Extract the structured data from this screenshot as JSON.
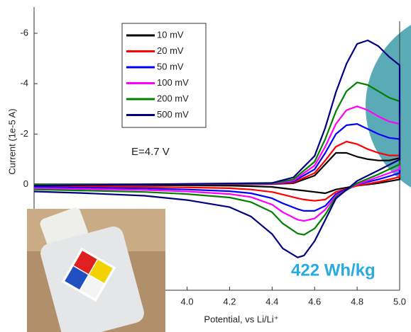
{
  "chart_data": {
    "type": "line",
    "y_label": "Current (1e-5 A)",
    "x_label": "Potential, vs Li/Li⁺",
    "annotations": [
      "E=4.7 V",
      "422 Wh/kg"
    ],
    "x": [
      3.28,
      3.8,
      4.4,
      4.5,
      4.6,
      4.65,
      4.7,
      4.75,
      4.8,
      4.85,
      4.9,
      4.95,
      5.0,
      5.0,
      4.9,
      4.8,
      4.7,
      4.65,
      4.6,
      4.55,
      4.52,
      4.45,
      4.4,
      4.3,
      4.2,
      4.0,
      3.8,
      3.5,
      3.28
    ],
    "series": [
      {
        "name": "10 mV",
        "color": "#000000",
        "values": [
          0,
          0,
          -0.01,
          -0.05,
          -0.35,
          -0.8,
          -1.25,
          -1.25,
          -1.1,
          -1.0,
          -0.95,
          -0.95,
          -1.05,
          -0.2,
          -0.05,
          0.05,
          0.2,
          0.35,
          0.3,
          0.25,
          0.22,
          0.15,
          0.1,
          0.07,
          0.05,
          0.04,
          0.03,
          0.02,
          0.02
        ]
      },
      {
        "name": "20 mV",
        "color": "#ff0000",
        "values": [
          0,
          0,
          -0.01,
          -0.08,
          -0.45,
          -0.95,
          -1.5,
          -1.7,
          -1.6,
          -1.4,
          -1.25,
          -1.15,
          -1.15,
          -0.3,
          -0.1,
          0.05,
          0.3,
          0.6,
          0.65,
          0.6,
          0.55,
          0.4,
          0.3,
          0.2,
          0.15,
          0.12,
          0.1,
          0.08,
          0.06
        ]
      },
      {
        "name": "50 mV",
        "color": "#0000ff",
        "values": [
          0,
          0,
          -0.02,
          -0.12,
          -0.6,
          -1.25,
          -2.0,
          -2.35,
          -2.4,
          -2.2,
          -2.0,
          -1.85,
          -1.8,
          -0.45,
          -0.2,
          0,
          0.38,
          0.85,
          1.05,
          1.05,
          0.98,
          0.75,
          0.55,
          0.35,
          0.27,
          0.2,
          0.16,
          0.13,
          0.1
        ]
      },
      {
        "name": "100 mV",
        "color": "#ff00ff",
        "values": [
          0,
          0,
          -0.03,
          -0.15,
          -0.75,
          -1.5,
          -2.4,
          -2.95,
          -3.1,
          -2.95,
          -2.7,
          -2.5,
          -2.4,
          -0.6,
          -0.3,
          0,
          0.45,
          1.0,
          1.35,
          1.45,
          1.4,
          1.1,
          0.8,
          0.5,
          0.38,
          0.28,
          0.22,
          0.18,
          0.15
        ]
      },
      {
        "name": "200 mV",
        "color": "#008000",
        "values": [
          0,
          0,
          -0.04,
          -0.2,
          -0.9,
          -1.8,
          -2.9,
          -3.7,
          -4.05,
          -3.95,
          -3.7,
          -3.45,
          -3.3,
          -0.8,
          -0.4,
          -0.05,
          0.5,
          1.2,
          1.75,
          2.0,
          1.95,
          1.55,
          1.1,
          0.7,
          0.52,
          0.38,
          0.3,
          0.24,
          0.2
        ]
      },
      {
        "name": "500 mV",
        "color": "#000080",
        "values": [
          0.05,
          0,
          -0.06,
          -0.28,
          -1.13,
          -2.25,
          -3.66,
          -4.79,
          -5.58,
          -5.72,
          -5.49,
          -5.07,
          -4.73,
          -0.99,
          -0.56,
          -0.14,
          0.56,
          1.41,
          2.25,
          2.82,
          2.9,
          2.54,
          1.97,
          1.27,
          0.9,
          0.62,
          0.45,
          0.34,
          0.28
        ]
      }
    ],
    "xlim": [
      3.28,
      5.0
    ],
    "xticks": [
      {
        "value": 4,
        "label": "4.0"
      },
      4.2,
      4.4,
      4.6,
      4.8,
      {
        "value": 5,
        "label": "5.0"
      }
    ],
    "ylim": [
      -7.04,
      4.2
    ],
    "yticks": [
      -6,
      -4,
      -2,
      0
    ],
    "legend": "upper-left"
  }
}
